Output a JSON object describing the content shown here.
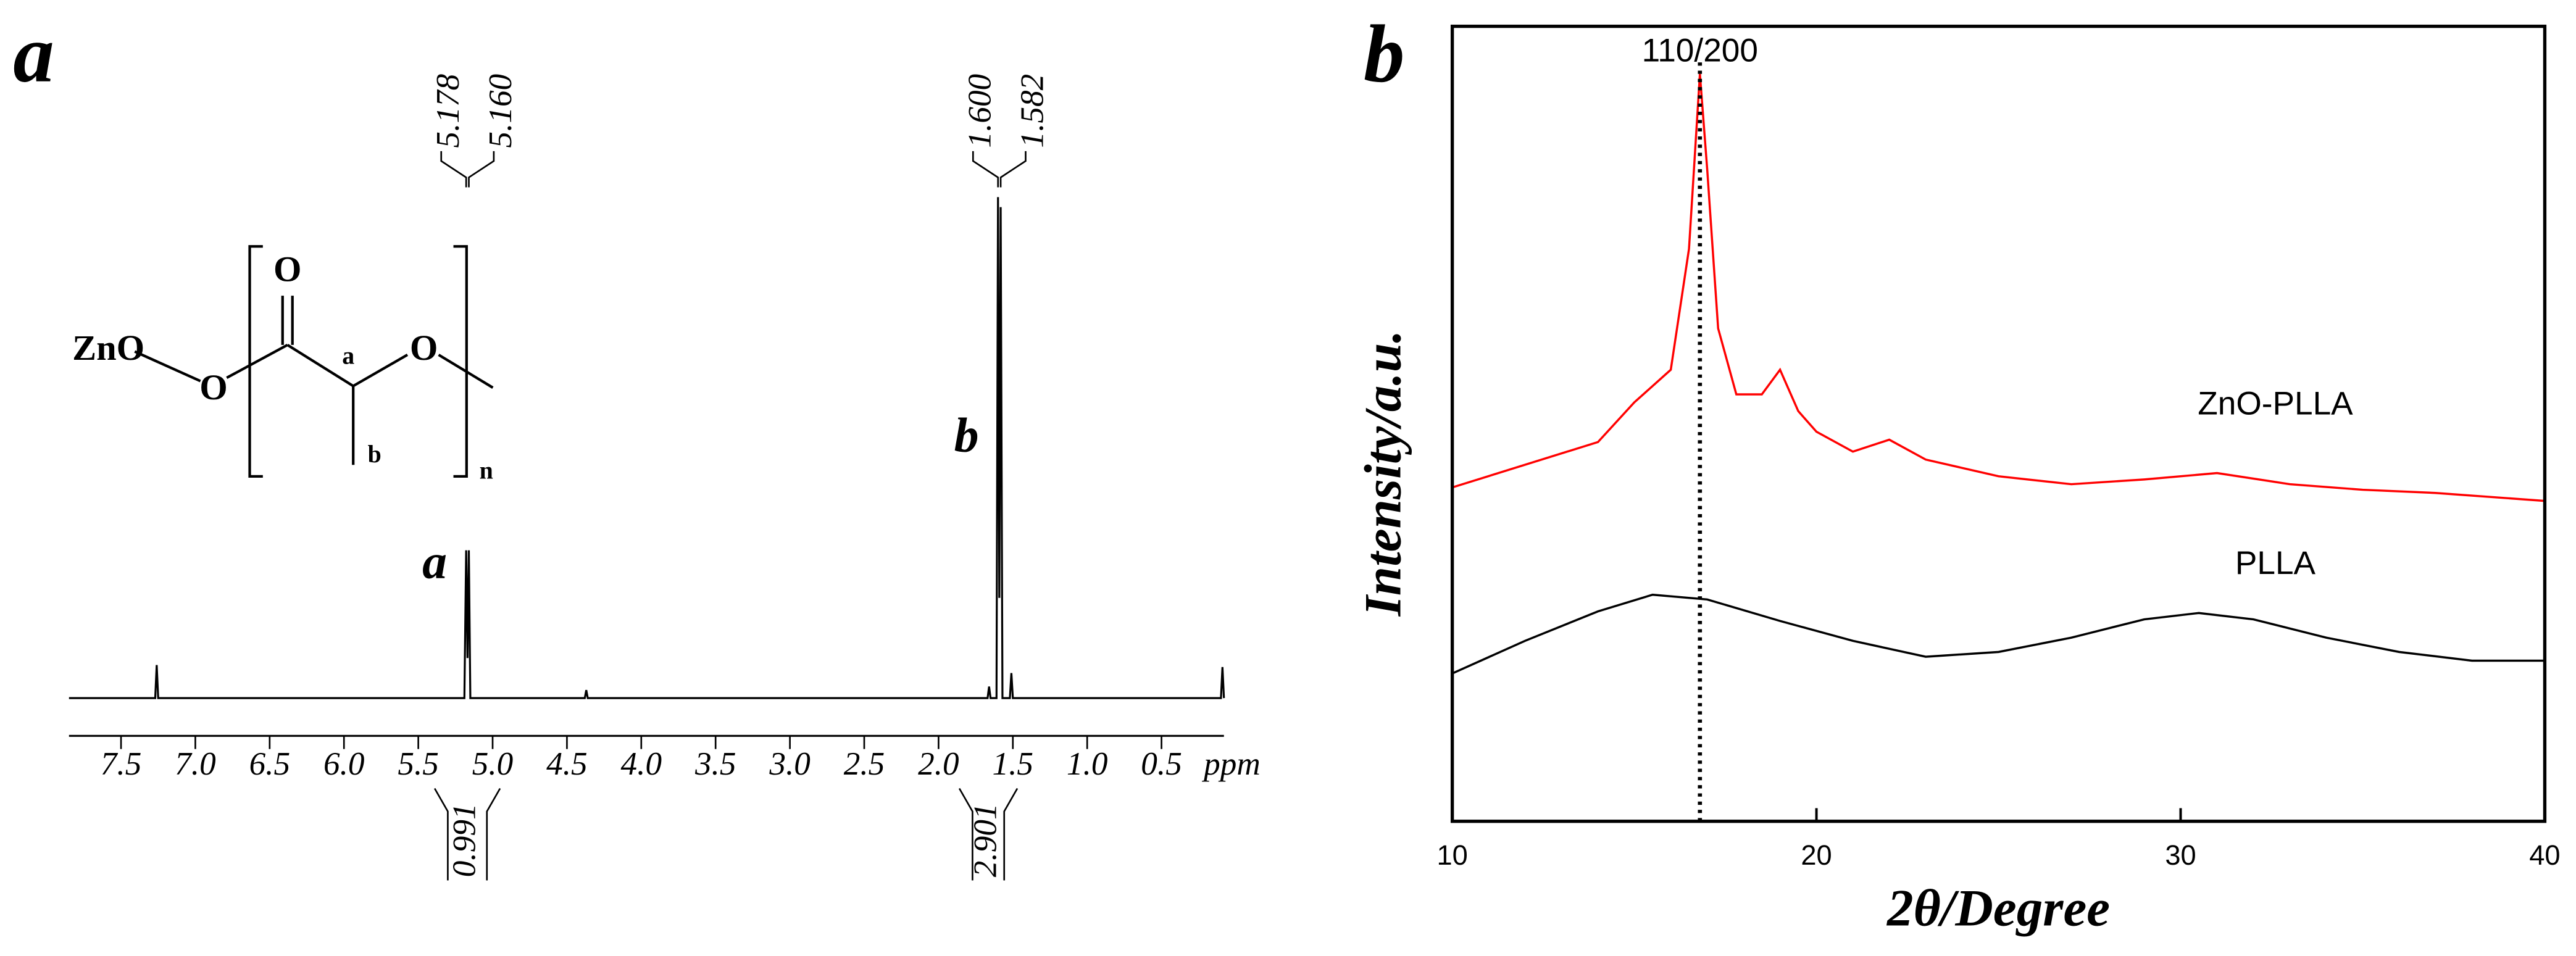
{
  "chart_data": [
    {
      "type": "line",
      "panel_label": "a",
      "x_label": "ppm",
      "xlim": [
        7.85,
        0.08
      ],
      "ylim": [
        0,
        100
      ],
      "xticks": [
        7.5,
        {
          "value": 7,
          "label": "7.0"
        },
        6.5,
        {
          "value": 6,
          "label": "6.0"
        },
        5.5,
        {
          "value": 5,
          "label": "5.0"
        },
        4.5,
        {
          "value": 4,
          "label": "4.0"
        },
        3.5,
        {
          "value": 3,
          "label": "3.0"
        },
        2.5,
        {
          "value": 2,
          "label": "2.0"
        },
        1.5,
        {
          "value": 1,
          "label": "1.0"
        },
        0.5
      ],
      "x": [
        7.85,
        7.27,
        7.26,
        7.25,
        5.19,
        5.178,
        5.169,
        5.16,
        5.15,
        4.38,
        4.37,
        4.36,
        1.67,
        1.66,
        1.65,
        1.61,
        1.6,
        1.591,
        1.582,
        1.57,
        1.52,
        1.51,
        1.5,
        0.1,
        0.09,
        0.08
      ],
      "series": [
        {
          "color": "#000000",
          "values": [
            0,
            0,
            6.6,
            0,
            0,
            29.5,
            8,
            29.5,
            0,
            0,
            1.6,
            0,
            0,
            2.3,
            0,
            0,
            100,
            20,
            98,
            0,
            0,
            5,
            0,
            0,
            6.2,
            0
          ]
        }
      ],
      "peak_groups": [
        {
          "name": "a",
          "labels": [
            5.178,
            {
              "value": 5.16,
              "label": "5.160"
            }
          ]
        },
        {
          "name": "b",
          "labels": [
            {
              "value": 1.6,
              "label": "1.600"
            },
            1.582
          ]
        }
      ],
      "integrals": [
        {
          "value": 0.991,
          "range": [
            5.39,
            4.95
          ]
        },
        {
          "value": 2.901,
          "range": [
            1.86,
            1.47
          ]
        }
      ],
      "structure_labels": [
        "ZnO",
        "O",
        "O",
        "O",
        "a",
        "b",
        "n"
      ]
    },
    {
      "type": "line",
      "panel_label": "b",
      "x_label": "2θ/Degree",
      "y_label": "Intensity/a.u.",
      "xlim": [
        10,
        40
      ],
      "ylim": [
        0,
        100
      ],
      "xticks": [
        10,
        20,
        30,
        40
      ],
      "annotations": [
        {
          "text": "110/200",
          "x": 16.8
        }
      ],
      "series": [
        {
          "name": "ZnO-PLLA",
          "color": "#ff0000",
          "x": [
            10,
            14,
            15,
            16,
            16.5,
            16.8,
            17,
            17.3,
            17.8,
            18.5,
            19,
            19.5,
            20,
            21,
            22,
            23,
            25,
            27,
            29,
            31,
            33,
            35,
            37,
            40
          ],
          "values": [
            42,
            47.7,
            52.7,
            56.8,
            72,
            94,
            82,
            62,
            53.7,
            53.7,
            56.8,
            51.6,
            49,
            46.5,
            48,
            45.5,
            43.4,
            42.4,
            43,
            43.8,
            42.4,
            41.7,
            41.3,
            40.3
          ]
        },
        {
          "name": "PLLA",
          "color": "#000000",
          "x": [
            10,
            12,
            14,
            15.5,
            17,
            19,
            21,
            23,
            25,
            27,
            29,
            30.5,
            32,
            34,
            36,
            38,
            40
          ],
          "values": [
            18.6,
            22.7,
            26.4,
            28.5,
            27.9,
            25.2,
            22.7,
            20.7,
            21.3,
            23.1,
            25.4,
            26.2,
            25.4,
            23.1,
            21.3,
            20.2,
            20.2
          ]
        }
      ]
    }
  ]
}
